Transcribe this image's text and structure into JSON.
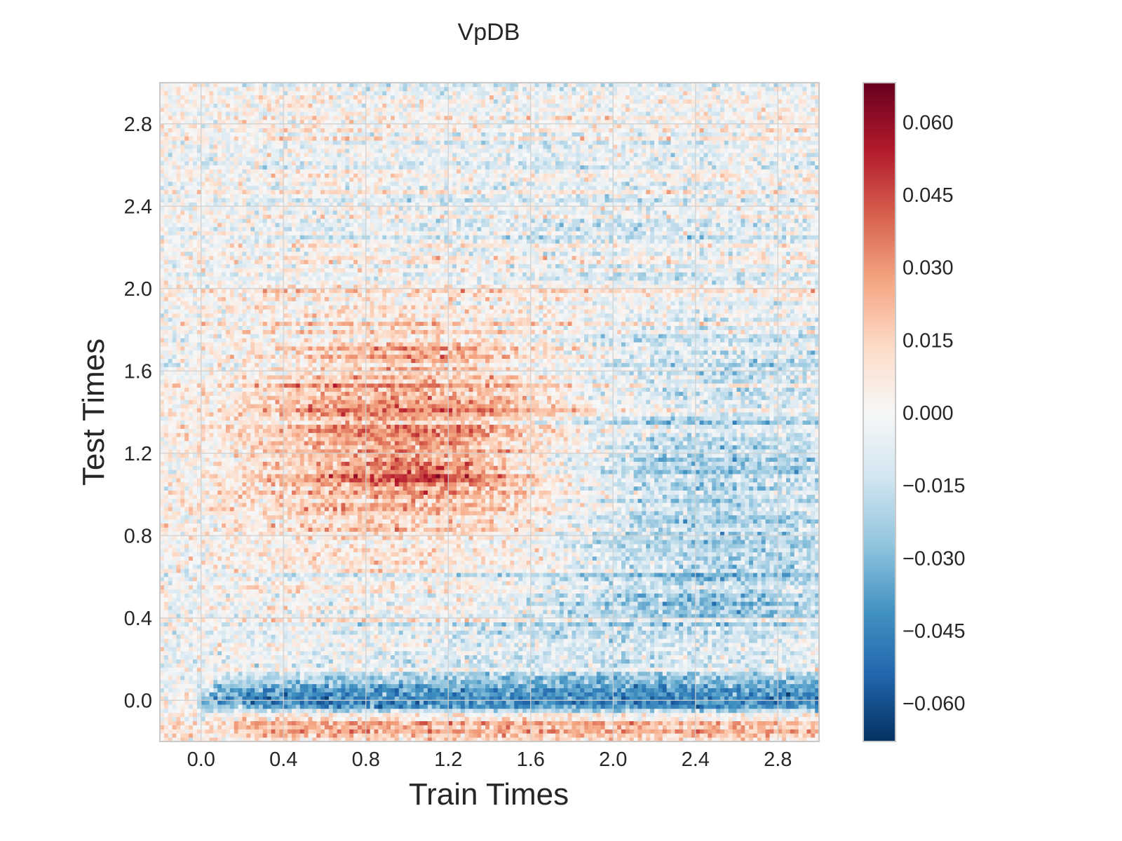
{
  "chart_data": {
    "type": "heatmap",
    "title": "VpDB",
    "xlabel": "Train Times",
    "ylabel": "Test Times",
    "xlim": [
      -0.2,
      3.0
    ],
    "ylim": [
      -0.2,
      3.0
    ],
    "xticks": [
      "0.0",
      "0.4",
      "0.8",
      "1.2",
      "1.6",
      "2.0",
      "2.4",
      "2.8"
    ],
    "yticks": [
      "0.0",
      "0.4",
      "0.8",
      "1.2",
      "1.6",
      "2.0",
      "2.4",
      "2.8"
    ],
    "grid": true,
    "colormap": "RdBu_r",
    "colorbar": {
      "vmin": -0.068,
      "vmax": 0.068,
      "ticks": [
        "0.060",
        "0.045",
        "0.030",
        "0.015",
        "0.000",
        "−0.015",
        "−0.030",
        "−0.045",
        "−0.060"
      ]
    },
    "grid_resolution": [
      160,
      160
    ],
    "approximate_structure": [
      {
        "region": "train 0.3-1.8, test 0.9-1.9",
        "value": 0.03,
        "note": "positive red cluster, strongest near train 1.1, test 1.1"
      },
      {
        "region": "train 0.0-3.0, test 0.0-0.1",
        "value": -0.04,
        "note": "strong negative blue band"
      },
      {
        "region": "train 0.0-3.0, test -0.15",
        "value": 0.02,
        "note": "positive red band at bottom"
      },
      {
        "region": "train 1.8-3.0, test 0.3-1.6",
        "value": -0.02,
        "note": "negative blue area"
      },
      {
        "region": "train 0.0-3.0, test 2.0-3.0",
        "value": -0.005,
        "note": "mostly near zero noise"
      }
    ]
  }
}
